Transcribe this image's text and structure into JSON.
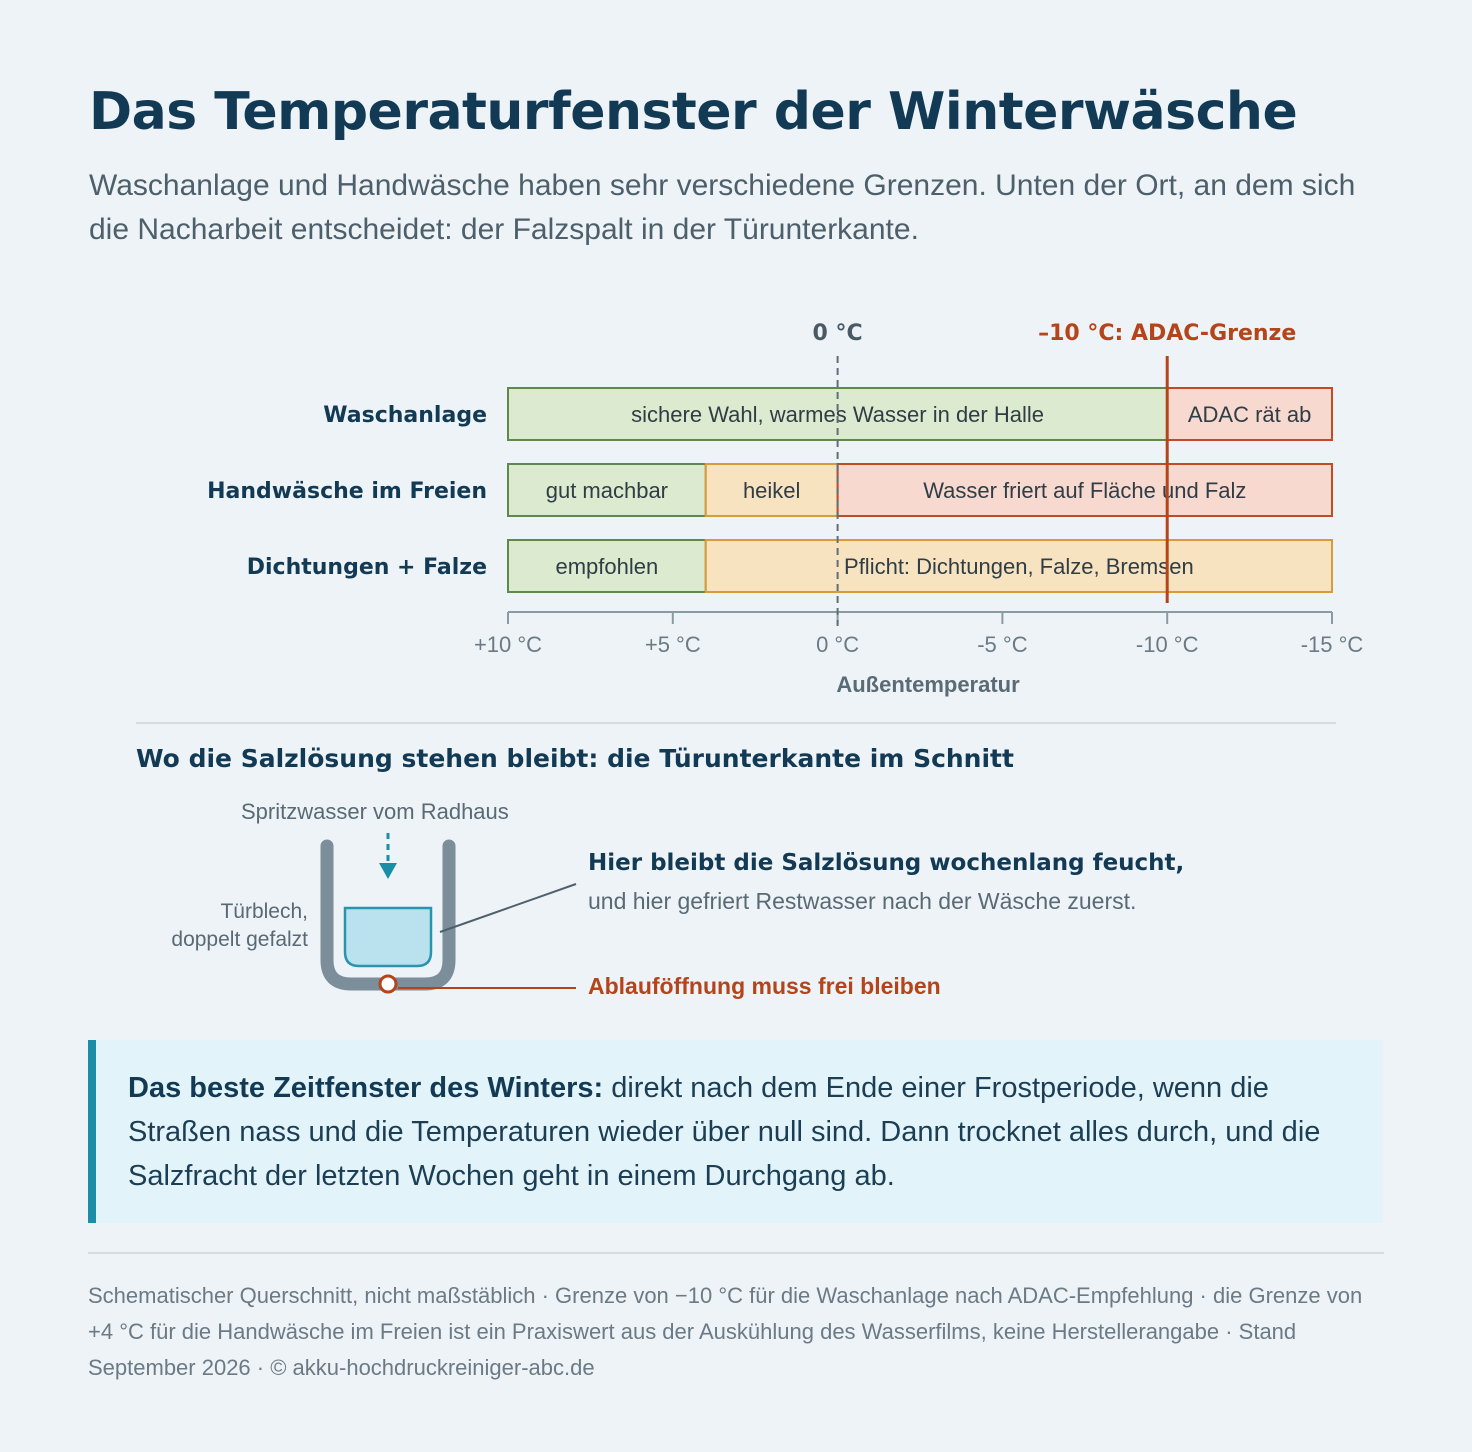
{
  "header": {
    "title": "Das Temperaturfenster der Winterwäsche",
    "subtitle": "Waschanlage und Handwäsche haben sehr verschiedene Grenzen. Unten der Ort, an dem sich die Nacharbeit entscheidet: der Falzspalt in der Türunterkante."
  },
  "chart_data": {
    "type": "bar",
    "orientation": "horizontal-range",
    "xlabel": "Außentemperatur",
    "xlim": [
      10,
      -15
    ],
    "xticks": [
      10,
      5,
      0,
      -5,
      -10,
      -15
    ],
    "xtick_labels": [
      "+10 °C",
      "+5 °C",
      "0 °C",
      "-5 °C",
      "-10 °C",
      "-15 °C"
    ],
    "colors": {
      "green_fill": "#dceacf",
      "green_stroke": "#5d8a4a",
      "amber_fill": "#f8e3c0",
      "amber_stroke": "#d99a3a",
      "red_fill": "#f7d9cf",
      "red_stroke": "#c44a24",
      "adac_line": "#b5441a",
      "zero_line": "#5f6e78"
    },
    "rows": [
      {
        "label": "Waschanlage",
        "segments": [
          {
            "from": 10,
            "to": -10,
            "label": "sichere Wahl, warmes Wasser in der Halle",
            "color": "green"
          },
          {
            "from": -10,
            "to": -15,
            "label": "ADAC rät ab",
            "color": "red"
          }
        ]
      },
      {
        "label": "Handwäsche im Freien",
        "segments": [
          {
            "from": 10,
            "to": 4,
            "label": "gut machbar",
            "color": "green"
          },
          {
            "from": 4,
            "to": 0,
            "label": "heikel",
            "color": "amber"
          },
          {
            "from": 0,
            "to": -15,
            "label": "Wasser friert auf Fläche und Falz",
            "color": "red"
          }
        ]
      },
      {
        "label": "Dichtungen + Falze",
        "segments": [
          {
            "from": 10,
            "to": 4,
            "label": "empfohlen",
            "color": "green"
          },
          {
            "from": 4,
            "to": -15,
            "label": "Pflicht: Dichtungen, Falze, Bremsen",
            "color": "amber"
          }
        ]
      }
    ],
    "reference_lines": [
      {
        "value": 0,
        "label": "0 °C",
        "style": "dashed",
        "color": "zero_line"
      },
      {
        "value": -10,
        "label": "–10 °C: ADAC-Grenze",
        "style": "solid",
        "color": "adac_line"
      }
    ]
  },
  "section": {
    "title": "Wo die Salzlösung stehen bleibt: die Türunterkante im Schnitt"
  },
  "diagram": {
    "spray_label": "Spritzwasser vom Radhaus",
    "sheet_label_line1": "Türblech,",
    "sheet_label_line2": "doppelt gefalzt",
    "callout_bold": "Hier bleibt die Salzlösung wochenlang feucht,",
    "callout_normal": "und hier gefriert Restwasser nach der Wäsche zuerst.",
    "drain_label": "Ablauföffnung muss frei bleiben"
  },
  "note": {
    "bold": "Das beste Zeitfenster des Winters:",
    "text": " direkt nach dem Ende einer Frostperiode, wenn die Straßen nass und die Temperaturen wieder über null sind. Dann trocknet alles durch, und die Salzfracht der letzten Wochen geht in einem Durchgang ab."
  },
  "footer": {
    "text": "Schematischer Querschnitt, nicht maßstäblich · Grenze von −10 °C für die Waschanlage nach ADAC-Empfehlung · die Grenze von +4 °C für die Handwäsche im Freien ist ein Praxiswert aus der Auskühlung des Wasserfilms, keine Herstellerangabe · Stand September 2026 · © akku-hochdruckreiniger-abc.de"
  }
}
